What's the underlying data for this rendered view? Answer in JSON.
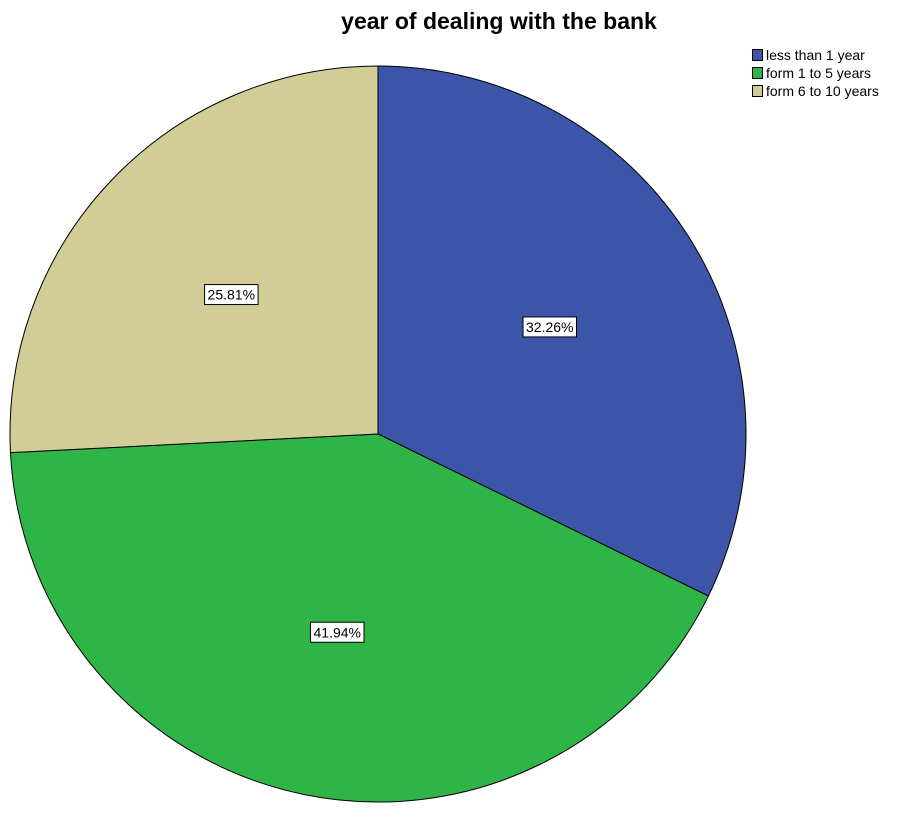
{
  "chart_data": {
    "type": "pie",
    "title": "year of dealing with the bank",
    "slices": [
      {
        "name": "less than 1 year",
        "value": 32.26,
        "label": "32.26%",
        "color": "#3d55a8"
      },
      {
        "name": "form 1 to 5 years",
        "value": 41.94,
        "label": "41.94%",
        "color": "#2fb547"
      },
      {
        "name": "form 6 to 10 years",
        "value": 25.81,
        "label": "25.81%",
        "color": "#d2cc97"
      }
    ],
    "start_angle": "12 o'clock",
    "direction": "clockwise",
    "legend_position": "top-right"
  }
}
